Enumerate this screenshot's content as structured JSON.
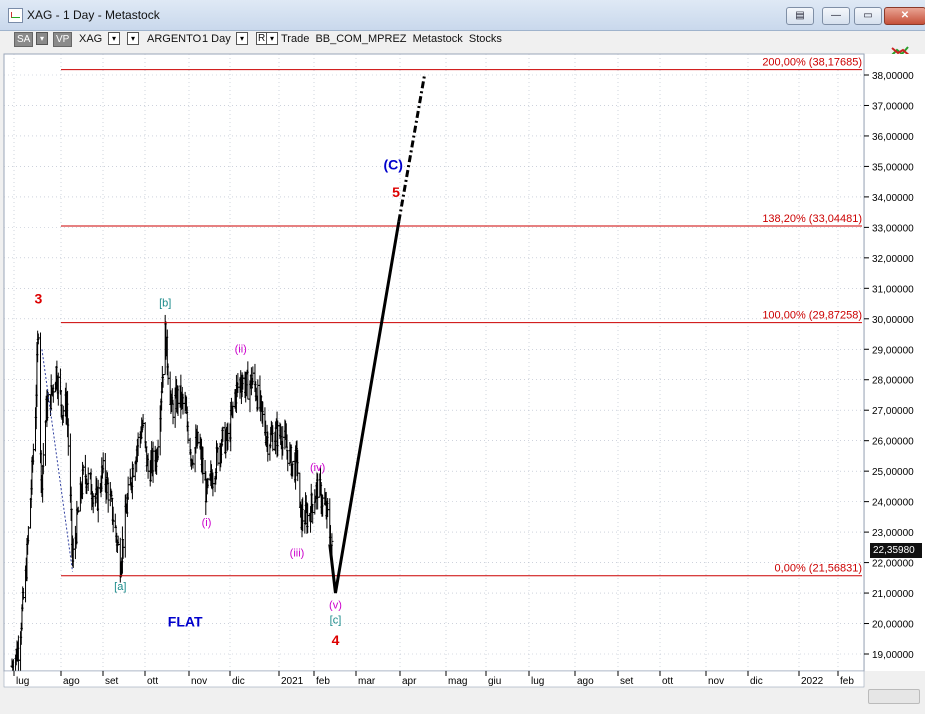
{
  "window": {
    "title": "XAG - 1 Day - Metastock",
    "controls": [
      "▤",
      "—",
      "▭",
      "✕"
    ]
  },
  "toolbar": {
    "sa": "SA",
    "vp": "VP",
    "symbol": "XAG",
    "name": "ARGENTO",
    "period": "1 Day",
    "r_btn": "R",
    "layout_text": "Trade  BB_COM_MPREZ  Metastock  Stocks"
  },
  "colors": {
    "fib_line": "#cc0000",
    "wave_red": "#dd0000",
    "wave_blue": "#0000cc",
    "wave_teal": "#1a8a8a",
    "wave_magenta": "#cc00cc",
    "price_bars": "#000000",
    "grid": "#b0b8c8",
    "background": "#ffffff"
  },
  "chart_data": {
    "type": "ohlc",
    "symbol": "XAG",
    "timeframe": "1 Day",
    "x_axis": {
      "labels": [
        "lug",
        "ago",
        "set",
        "ott",
        "nov",
        "dic",
        "2021",
        "feb",
        "mar",
        "apr",
        "mag",
        "giu",
        "lug",
        "ago",
        "set",
        "ott",
        "nov",
        "dic",
        "2022",
        "feb"
      ]
    },
    "y_axis": {
      "range": [
        18.4,
        38.4
      ],
      "ticks": [
        19,
        20,
        21,
        22,
        23,
        24,
        25,
        26,
        27,
        28,
        29,
        30,
        31,
        32,
        33,
        34,
        35,
        36,
        37,
        38
      ],
      "tick_labels": [
        "19,00000",
        "20,00000",
        "21,00000",
        "22,00000",
        "23,00000",
        "24,00000",
        "25,00000",
        "26,00000",
        "27,00000",
        "28,00000",
        "29,00000",
        "30,00000",
        "31,00000",
        "32,00000",
        "33,00000",
        "34,00000",
        "35,00000",
        "36,00000",
        "37,00000",
        "38,00000"
      ]
    },
    "last_price": "22,35980",
    "price_path_approx": [
      [
        "2020-07-01",
        18.6
      ],
      [
        "2020-07-10",
        19.2
      ],
      [
        "2020-07-20",
        21.5
      ],
      [
        "2020-07-28",
        24.5
      ],
      [
        "2020-08-03",
        27.0
      ],
      [
        "2020-08-07",
        29.8
      ],
      [
        "2020-08-11",
        24.5
      ],
      [
        "2020-08-18",
        27.0
      ],
      [
        "2020-08-25",
        27.5
      ],
      [
        "2020-09-01",
        28.3
      ],
      [
        "2020-09-10",
        27.0
      ],
      [
        "2020-09-16",
        27.2
      ],
      [
        "2020-09-24",
        22.0
      ],
      [
        "2020-10-01",
        23.5
      ],
      [
        "2020-10-10",
        25.0
      ],
      [
        "2020-10-20",
        24.5
      ],
      [
        "2020-10-28",
        24.0
      ],
      [
        "2020-11-05",
        25.0
      ],
      [
        "2020-11-12",
        24.5
      ],
      [
        "2020-11-20",
        23.5
      ],
      [
        "2020-11-30",
        22.0
      ],
      [
        "2020-12-10",
        24.0
      ],
      [
        "2020-12-20",
        25.5
      ],
      [
        "2020-12-31",
        26.5
      ],
      [
        "2021-01-08",
        25.0
      ],
      [
        "2021-01-20",
        25.5
      ],
      [
        "2021-02-01",
        29.5
      ],
      [
        "2021-02-10",
        27.0
      ],
      [
        "2021-02-20",
        27.5
      ],
      [
        "2021-03-01",
        27.0
      ],
      [
        "2021-03-10",
        25.5
      ],
      [
        "2021-03-20",
        26.0
      ],
      [
        "2021-03-31",
        24.2
      ],
      [
        "2021-04-10",
        25.0
      ],
      [
        "2021-04-20",
        26.0
      ],
      [
        "2021-04-30",
        26.0
      ],
      [
        "2021-05-10",
        27.5
      ],
      [
        "2021-05-18",
        28.0
      ],
      [
        "2021-05-28",
        27.8
      ],
      [
        "2021-06-05",
        28.0
      ],
      [
        "2021-06-15",
        27.0
      ],
      [
        "2021-06-25",
        26.0
      ],
      [
        "2021-07-05",
        26.2
      ],
      [
        "2021-07-15",
        26.2
      ],
      [
        "2021-07-25",
        25.5
      ],
      [
        "2021-08-01",
        25.0
      ],
      [
        "2021-08-05",
        25.5
      ],
      [
        "2021-08-09",
        23.5
      ],
      [
        "2021-08-20",
        23.5
      ],
      [
        "2021-08-27",
        24.0
      ],
      [
        "2021-09-03",
        24.5
      ],
      [
        "2021-09-10",
        24.0
      ],
      [
        "2021-09-17",
        23.5
      ],
      [
        "2021-09-23",
        22.4
      ]
    ],
    "fib_levels": [
      {
        "label": "200,00% (38,17685)",
        "value": 38.17685
      },
      {
        "label": "138,20% (33,04481)",
        "value": 33.04481
      },
      {
        "label": "100,00% (29,87258)",
        "value": 29.87258
      },
      {
        "label": "0,00% (21,56831)",
        "value": 21.56831
      }
    ],
    "wave_labels": [
      {
        "text": "3",
        "date": "2020-08-07",
        "price": 30.5,
        "color": "red"
      },
      {
        "text": "[a]",
        "date": "2020-11-30",
        "price": 21.1,
        "color": "teal"
      },
      {
        "text": "[b]",
        "date": "2021-02-01",
        "price": 30.4,
        "color": "teal"
      },
      {
        "text": "(i)",
        "date": "2021-03-31",
        "price": 23.2,
        "color": "magenta"
      },
      {
        "text": "(ii)",
        "date": "2021-05-18",
        "price": 28.9,
        "color": "magenta"
      },
      {
        "text": "(iii)",
        "date": "2021-08-05",
        "price": 22.2,
        "color": "magenta"
      },
      {
        "text": "(iv)",
        "date": "2021-09-03",
        "price": 25.0,
        "color": "magenta"
      },
      {
        "text": "(v)",
        "date": "2021-09-28",
        "price": 20.5,
        "color": "magenta"
      },
      {
        "text": "[c]",
        "date": "2021-09-28",
        "price": 20.0,
        "color": "teal"
      },
      {
        "text": "4",
        "date": "2021-09-28",
        "price": 19.3,
        "color": "red"
      },
      {
        "text": "FLAT",
        "date": "2021-03-01",
        "price": 19.9,
        "color": "blue"
      },
      {
        "text": "(C)",
        "date": "2021-12-18",
        "price": 34.9,
        "color": "blue"
      },
      {
        "text": "5",
        "date": "2021-12-22",
        "price": 34.0,
        "color": "red"
      }
    ],
    "projection": {
      "solid": [
        [
          "2021-09-20",
          22.6
        ],
        [
          "2021-09-28",
          21.0
        ],
        [
          "2021-12-26",
          33.2
        ]
      ],
      "dashed": [
        [
          "2021-12-26",
          33.2
        ],
        [
          "2022-01-31",
          38.0
        ]
      ]
    },
    "trendline_dotted": [
      [
        "2020-08-12",
        29.0
      ],
      [
        "2020-09-24",
        21.7
      ]
    ]
  }
}
